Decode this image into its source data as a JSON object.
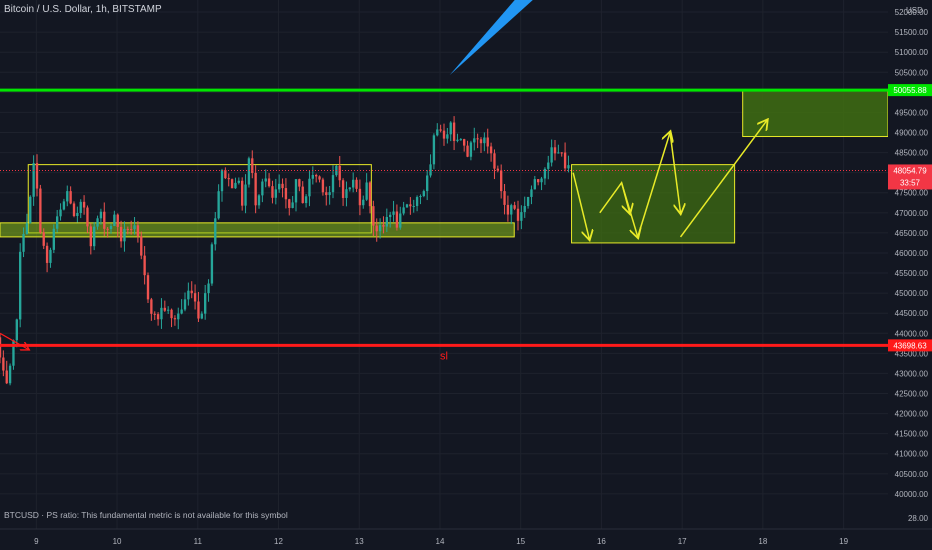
{
  "header": {
    "title": "Bitcoin / U.S. Dollar, 1h, BITSTAMP",
    "currency": "USD"
  },
  "footer": {
    "note": "BTCUSD · PS ratio: This fundamental metric is not available for this symbol"
  },
  "colors": {
    "background": "#131722",
    "grid": "#1e222d",
    "axis_text": "#b2b5be",
    "up": "#26a69a",
    "down": "#ef5350",
    "resistance": "#00e600",
    "stop_loss": "#ff1a1a",
    "zone_fill": "#3f6d12",
    "zone_border": "#e8ea28",
    "arrow_blue": "#2196f3",
    "price_tag": "#f23645"
  },
  "chart_data": {
    "type": "candlestick",
    "title": "Bitcoin / U.S. Dollar, 1h, BITSTAMP",
    "x_ticks": [
      "9",
      "10",
      "11",
      "12",
      "13",
      "14",
      "15",
      "16",
      "17",
      "18",
      "19"
    ],
    "y_ticks": [
      "52000.00",
      "51500.00",
      "51000.00",
      "50500.00",
      "50000.00",
      "49500.00",
      "49000.00",
      "48500.00",
      "48000.00",
      "47500.00",
      "47000.00",
      "46500.00",
      "46000.00",
      "45500.00",
      "45000.00",
      "44500.00",
      "44000.00",
      "43500.00",
      "43000.00",
      "42500.00",
      "42000.00",
      "41500.00",
      "41000.00",
      "40500.00",
      "40000.00"
    ],
    "ylim": [
      39300,
      52300
    ],
    "xlim": [
      8.55,
      19.55
    ],
    "extra_axis_label": "28.00",
    "last_day": 15.6,
    "price_path": [
      [
        8.55,
        43900
      ],
      [
        8.62,
        43000
      ],
      [
        8.68,
        42600
      ],
      [
        8.74,
        43300
      ],
      [
        8.8,
        44500
      ],
      [
        8.86,
        46500
      ],
      [
        8.92,
        46800
      ],
      [
        8.96,
        47100
      ],
      [
        9.0,
        48300
      ],
      [
        9.05,
        47500
      ],
      [
        9.1,
        46500
      ],
      [
        9.18,
        45600
      ],
      [
        9.26,
        46600
      ],
      [
        9.34,
        47000
      ],
      [
        9.44,
        47600
      ],
      [
        9.52,
        46700
      ],
      [
        9.62,
        47300
      ],
      [
        9.72,
        46300
      ],
      [
        9.82,
        47000
      ],
      [
        9.92,
        46600
      ],
      [
        10.02,
        46900
      ],
      [
        10.1,
        46300
      ],
      [
        10.18,
        46700
      ],
      [
        10.28,
        46500
      ],
      [
        10.36,
        45600
      ],
      [
        10.44,
        44800
      ],
      [
        10.52,
        44300
      ],
      [
        10.62,
        44700
      ],
      [
        10.72,
        44300
      ],
      [
        10.84,
        44600
      ],
      [
        10.96,
        45200
      ],
      [
        11.06,
        44400
      ],
      [
        11.16,
        45100
      ],
      [
        11.24,
        46700
      ],
      [
        11.3,
        47600
      ],
      [
        11.36,
        48100
      ],
      [
        11.44,
        47700
      ],
      [
        11.52,
        47900
      ],
      [
        11.6,
        47200
      ],
      [
        11.68,
        48400
      ],
      [
        11.76,
        47300
      ],
      [
        11.86,
        48000
      ],
      [
        11.96,
        47300
      ],
      [
        12.06,
        47700
      ],
      [
        12.16,
        47000
      ],
      [
        12.26,
        47700
      ],
      [
        12.36,
        47300
      ],
      [
        12.46,
        48000
      ],
      [
        12.56,
        47800
      ],
      [
        12.66,
        47400
      ],
      [
        12.76,
        48100
      ],
      [
        12.86,
        47400
      ],
      [
        12.96,
        47800
      ],
      [
        13.06,
        47300
      ],
      [
        13.14,
        47700
      ],
      [
        13.22,
        46700
      ],
      [
        13.32,
        46500
      ],
      [
        13.42,
        47100
      ],
      [
        13.52,
        46700
      ],
      [
        13.62,
        47100
      ],
      [
        13.72,
        47300
      ],
      [
        13.82,
        47500
      ],
      [
        13.92,
        48000
      ],
      [
        13.98,
        49000
      ],
      [
        14.04,
        49300
      ],
      [
        14.1,
        48600
      ],
      [
        14.16,
        49500
      ],
      [
        14.24,
        48700
      ],
      [
        14.32,
        49000
      ],
      [
        14.4,
        48400
      ],
      [
        14.48,
        49100
      ],
      [
        14.56,
        48800
      ],
      [
        14.64,
        48600
      ],
      [
        14.72,
        48200
      ],
      [
        14.8,
        47600
      ],
      [
        14.88,
        46900
      ],
      [
        14.94,
        47300
      ],
      [
        15.02,
        46800
      ],
      [
        15.1,
        47300
      ],
      [
        15.18,
        47600
      ],
      [
        15.26,
        47800
      ],
      [
        15.34,
        48200
      ],
      [
        15.42,
        48500
      ],
      [
        15.5,
        48400
      ],
      [
        15.56,
        48700
      ],
      [
        15.6,
        48050
      ]
    ],
    "volatility": 330,
    "horizontal_lines": [
      {
        "name": "resistance",
        "y": 50055.88,
        "label": "50055.88",
        "color": "#00e600",
        "width": 3
      },
      {
        "name": "stop-loss",
        "y": 43698.63,
        "label": "43698.63",
        "color": "#ff1a1a",
        "width": 3
      }
    ],
    "current_price": {
      "label": "48054.79",
      "countdown": "33:57",
      "y": 48054.79
    },
    "annotations": {
      "sl_text": "sl",
      "consolidation_box": {
        "x0": 8.9,
        "x1": 13.15,
        "y0": 46500,
        "y1": 48200
      },
      "support_zone": {
        "x0": 8.55,
        "x1": 14.92,
        "y0": 46400,
        "y1": 46750
      },
      "target_zone": {
        "x0": 17.75,
        "x1": 19.55,
        "y0": 48900,
        "y1": 50050
      },
      "range_zone": {
        "x0": 15.63,
        "x1": 17.65,
        "y0": 46250,
        "y1": 48200
      },
      "zigzag": [
        [
          [
            15.65,
            48000
          ],
          [
            15.85,
            46350
          ]
        ],
        [
          [
            15.98,
            47000
          ],
          [
            16.25,
            47750
          ],
          [
            16.35,
            47000
          ]
        ],
        [
          [
            16.25,
            47750
          ],
          [
            16.45,
            46400
          ]
        ],
        [
          [
            16.45,
            46400
          ],
          [
            16.85,
            49000
          ]
        ],
        [
          [
            16.85,
            49000
          ],
          [
            16.98,
            47000
          ]
        ],
        [
          [
            16.98,
            46400
          ],
          [
            18.05,
            49300
          ]
        ]
      ],
      "small_red_arrow": [
        [
          8.55,
          44000
        ],
        [
          8.9,
          43600
        ]
      ],
      "blue_arrow_tip": [
        14.12,
        50430
      ]
    }
  }
}
